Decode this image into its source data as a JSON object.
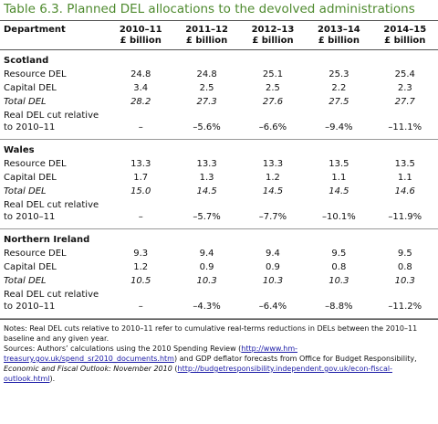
{
  "title": "Table 6.3. Planned DEL allocations to the devolved administrations",
  "table": {
    "header": {
      "label": "Department",
      "columns": [
        {
          "year": "2010–11",
          "unit": "£ billion"
        },
        {
          "year": "2011–12",
          "unit": "£ billion"
        },
        {
          "year": "2012–13",
          "unit": "£ billion"
        },
        {
          "year": "2013–14",
          "unit": "£ billion"
        },
        {
          "year": "2014–15",
          "unit": "£ billion"
        }
      ]
    },
    "sections": [
      {
        "name": "Scotland",
        "rows": [
          {
            "label": "Resource DEL",
            "cells": [
              "24.8",
              "24.8",
              "25.1",
              "25.3",
              "25.4"
            ]
          },
          {
            "label": "Capital DEL",
            "cells": [
              "3.4",
              "2.5",
              "2.5",
              "2.2",
              "2.3"
            ]
          },
          {
            "label": "Total DEL",
            "style": "italic",
            "cells": [
              "28.2",
              "27.3",
              "27.6",
              "27.5",
              "27.7"
            ]
          },
          {
            "label": "Real DEL cut relative to 2010–11",
            "cells": [
              "–",
              "–5.6%",
              "–6.6%",
              "–9.4%",
              "–11.1%"
            ]
          }
        ]
      },
      {
        "name": "Wales",
        "rows": [
          {
            "label": "Resource DEL",
            "cells": [
              "13.3",
              "13.3",
              "13.3",
              "13.5",
              "13.5"
            ]
          },
          {
            "label": "Capital DEL",
            "cells": [
              "1.7",
              "1.3",
              "1.2",
              "1.1",
              "1.1"
            ]
          },
          {
            "label": "Total DEL",
            "style": "italic",
            "cells": [
              "15.0",
              "14.5",
              "14.5",
              "14.5",
              "14.6"
            ]
          },
          {
            "label": "Real DEL cut relative to 2010–11",
            "cells": [
              "–",
              "–5.7%",
              "–7.7%",
              "–10.1%",
              "–11.9%"
            ]
          }
        ]
      },
      {
        "name": "Northern Ireland",
        "rows": [
          {
            "label": "Resource DEL",
            "cells": [
              "9.3",
              "9.4",
              "9.4",
              "9.5",
              "9.5"
            ]
          },
          {
            "label": "Capital DEL",
            "cells": [
              "1.2",
              "0.9",
              "0.9",
              "0.8",
              "0.8"
            ]
          },
          {
            "label": "Total DEL",
            "style": "italic",
            "cells": [
              "10.5",
              "10.3",
              "10.3",
              "10.3",
              "10.3"
            ]
          },
          {
            "label": "Real DEL cut relative to 2010–11",
            "cells": [
              "–",
              "–4.3%",
              "–6.4%",
              "–8.8%",
              "–11.2%"
            ]
          }
        ]
      }
    ]
  },
  "notes": [
    [
      {
        "text": "Notes: Real DEL cuts relative to 2010–11 refer to cumulative real-terms reductions in DELs between the 2010–11 baseline and any given year."
      }
    ],
    [
      {
        "text": "Sources: Authors’ calculations using the 2010 Spending Review ("
      },
      {
        "text": "http://www.hm-treasury.gov.uk/spend_sr2010_documents.htm",
        "style": "link"
      },
      {
        "text": ") and GDP deflator forecasts from Office for Budget Responsibility, "
      },
      {
        "text": "Economic and Fiscal Outlook: November 2010",
        "style": "italic"
      },
      {
        "text": " ("
      },
      {
        "text": "http://budgetresponsibility.independent.gov.uk/econ-fiscal-outlook.html",
        "style": "link"
      },
      {
        "text": ")."
      }
    ]
  ]
}
